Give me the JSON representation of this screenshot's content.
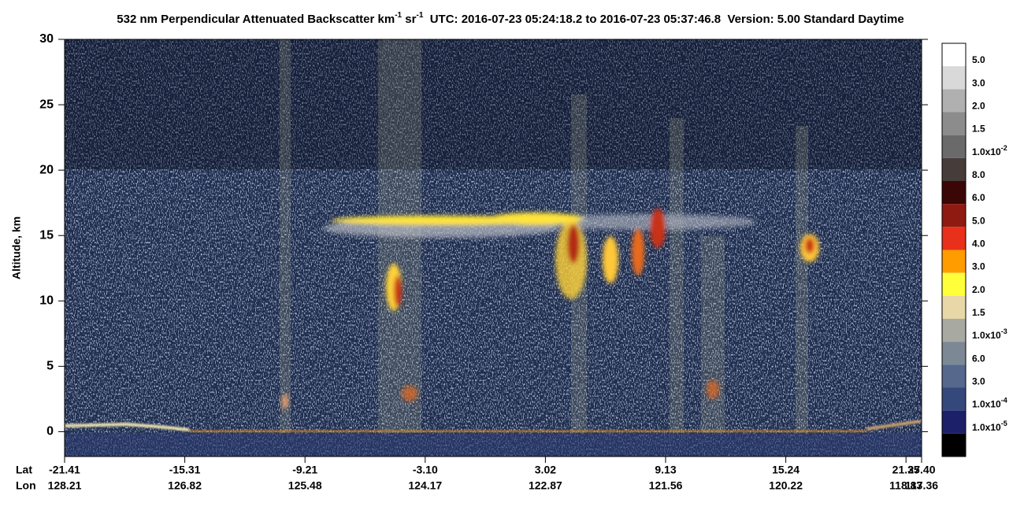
{
  "chart_data": {
    "type": "curtain",
    "title": [
      "532 nm Perpendicular Attenuated Backscatter km",
      "-1",
      " sr",
      "-1",
      "  UTC: 2016-07-23 05:24:18.2 to 2016-07-23 05:37:46.8  Version: 5.00 Standard Daytime"
    ],
    "ylabel": "Altitude, km",
    "ylim": [
      -1.9,
      30
    ],
    "yticks": [
      0,
      5,
      10,
      15,
      20,
      25,
      30
    ],
    "x_rows": [
      {
        "name": "Lat",
        "labels": [
          "-21.41",
          "-15.31",
          "-9.21",
          "-3.10",
          "3.02",
          "9.13",
          "15.24",
          "21.35",
          "27.40"
        ]
      },
      {
        "name": "Lon",
        "labels": [
          "128.21",
          "126.82",
          "125.48",
          "124.17",
          "122.87",
          "121.56",
          "120.22",
          "118.83",
          "117.36"
        ]
      }
    ],
    "colorbar": {
      "colors": [
        "#ffffff",
        "#d9d9d9",
        "#b0b0b0",
        "#8c8c8c",
        "#6a6a6a",
        "#463c3a",
        "#3a0606",
        "#8e1a12",
        "#e8301a",
        "#ff9c00",
        "#ffff3a",
        "#e8d8a8",
        "#a8aaa2",
        "#7c8894",
        "#56688c",
        "#34487c",
        "#1c2068",
        "#000000"
      ],
      "labels": [
        {
          "text": "5.0"
        },
        {
          "text": "3.0"
        },
        {
          "text": "2.0"
        },
        {
          "text": "1.5"
        },
        {
          "text": "1.0x10",
          "exponent": "-2"
        },
        {
          "text": "8.0"
        },
        {
          "text": "6.0"
        },
        {
          "text": "5.0"
        },
        {
          "text": "4.0"
        },
        {
          "text": "3.0"
        },
        {
          "text": "2.0"
        },
        {
          "text": "1.5"
        },
        {
          "text": "1.0x10",
          "exponent": "-3"
        },
        {
          "text": "6.0"
        },
        {
          "text": "3.0"
        },
        {
          "text": "1.0x10",
          "exponent": "-4"
        },
        {
          "text": "1.0x10",
          "exponent": "-5"
        }
      ]
    }
  }
}
